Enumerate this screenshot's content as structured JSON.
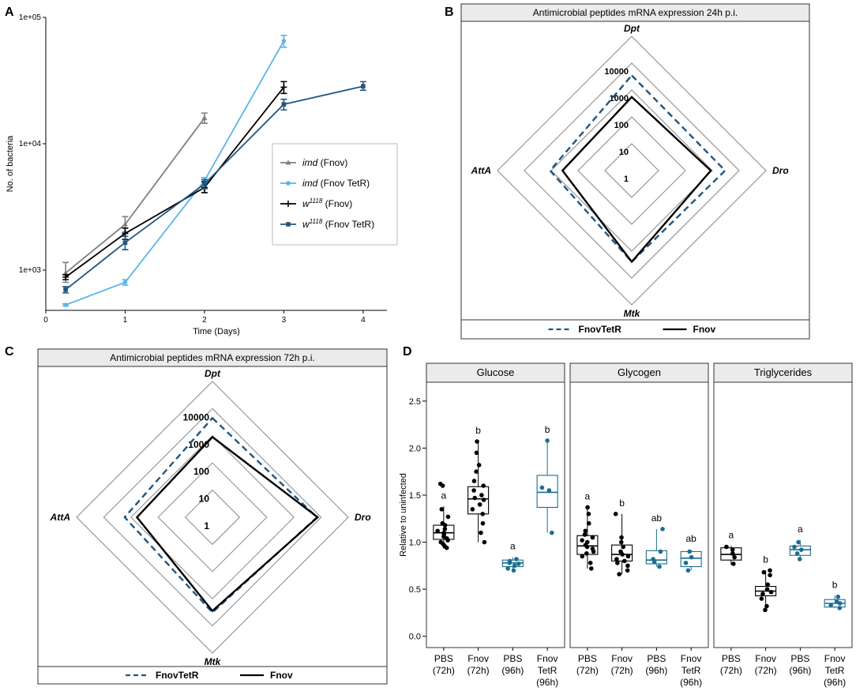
{
  "panel_labels": {
    "a": "A",
    "b": "B",
    "c": "C",
    "d": "D"
  },
  "chart_data": [
    {
      "id": "A",
      "type": "line",
      "scale_y": "log10",
      "xlabel": "Time (Days)",
      "ylabel": "No. of bacteria",
      "xlim": [
        0,
        4.3
      ],
      "ylim": [
        480,
        100000
      ],
      "x_ticks": [
        0,
        1,
        2,
        3,
        4
      ],
      "x_tick_labels": [
        "0",
        "1",
        "2",
        "3",
        "4"
      ],
      "y_ticks": [
        1000,
        10000,
        100000
      ],
      "y_tick_labels": [
        "1e+03",
        "1e+04",
        "1e+05"
      ],
      "legend_position": "center-right",
      "series": [
        {
          "name": "imd",
          "name_suffix": " (Fnov)",
          "italic": true,
          "sup": "",
          "color": "#7f7f7f",
          "marker": "triangle",
          "x": [
            0.25,
            1,
            2
          ],
          "y": [
            950,
            2300,
            16000
          ],
          "err": [
            [
              800,
              1150
            ],
            [
              2000,
              2650
            ],
            [
              14500,
              17500
            ]
          ]
        },
        {
          "name": "imd",
          "name_suffix": " (Fnov TetR)",
          "italic": true,
          "sup": "",
          "color": "#5ab4ea",
          "marker": "circle",
          "x": [
            0.25,
            1,
            2,
            3
          ],
          "y": [
            530,
            800,
            5100,
            65000
          ],
          "err": [
            [
              520,
              540
            ],
            [
              760,
              840
            ],
            [
              4800,
              5400
            ],
            [
              58000,
              72000
            ]
          ]
        },
        {
          "name": "w",
          "name_suffix": " (Fnov)",
          "italic": true,
          "sup": "1118",
          "color": "#000000",
          "marker": "plus",
          "x": [
            0.25,
            1,
            2,
            3
          ],
          "y": [
            880,
            1950,
            4500,
            28000
          ],
          "err": [
            [
              840,
              920
            ],
            [
              1750,
              2150
            ],
            [
              4100,
              5000
            ],
            [
              25000,
              31000
            ]
          ]
        },
        {
          "name": "w",
          "name_suffix": " (Fnov TetR)",
          "italic": true,
          "sup": "1118",
          "color": "#22557f",
          "marker": "square",
          "x": [
            0.25,
            1,
            2,
            3,
            4
          ],
          "y": [
            700,
            1650,
            4800,
            20500,
            28500
          ],
          "err": [
            [
              660,
              740
            ],
            [
              1450,
              1850
            ],
            [
              4400,
              5200
            ],
            [
              18500,
              22500
            ],
            [
              26500,
              31000
            ]
          ]
        }
      ]
    },
    {
      "id": "B",
      "type": "radar",
      "title": "Antimicrobial peptides mRNA expression 24h p.i.",
      "axes": [
        "Dpt",
        "Dro",
        "Mtk",
        "AttA"
      ],
      "scale": "log10",
      "rmax": 100000,
      "rings": [
        1,
        10,
        100,
        1000,
        10000
      ],
      "ring_labels": [
        "1",
        "10",
        "100",
        "1000",
        "10000"
      ],
      "series": [
        {
          "name": "FnovTetR",
          "style": "dashed",
          "color": "#22557f",
          "values": [
            3500,
            3000,
            2500,
            1100
          ]
        },
        {
          "name": "Fnov",
          "style": "solid",
          "color": "#000000",
          "values": [
            550,
            880,
            2500,
            380
          ]
        }
      ]
    },
    {
      "id": "C",
      "type": "radar",
      "title": "Antimicrobial peptides mRNA expression 72h p.i.",
      "axes": [
        "Dpt",
        "Dro",
        "Mtk",
        "AttA"
      ],
      "scale": "log10",
      "rmax": 100000,
      "rings": [
        1,
        10,
        100,
        1000,
        10000
      ],
      "ring_labels": [
        "1",
        "10",
        "100",
        "1000",
        "10000"
      ],
      "series": [
        {
          "name": "FnovTetR",
          "style": "dashed",
          "color": "#22557f",
          "values": [
            4500,
            7000,
            3200,
            1700
          ]
        },
        {
          "name": "Fnov",
          "style": "solid",
          "color": "#000000",
          "values": [
            900,
            7500,
            2800,
            600
          ]
        }
      ]
    },
    {
      "id": "D",
      "type": "box",
      "ylabel": "Relative  to uninfected",
      "ylim": [
        -0.12,
        2.7
      ],
      "y_ticks": [
        0,
        0.5,
        1,
        1.5,
        2,
        2.5
      ],
      "y_tick_labels": [
        "0.0",
        "0.5",
        "1.0",
        "1.5",
        "2.0",
        "2.5"
      ],
      "categories": [
        [
          "PBS",
          "(72h)"
        ],
        [
          "Fnov",
          "(72h)"
        ],
        [
          "PBS",
          "(96h)"
        ],
        [
          "Fnov",
          "TetR",
          "(96h)"
        ]
      ],
      "category_colors": [
        "#000000",
        "#000000",
        "#1b6e8f",
        "#1b6e8f"
      ],
      "facets": [
        {
          "title": "Glucose",
          "groups": [
            {
              "q1": 1.03,
              "median": 1.1,
              "q3": 1.18,
              "whisker_low": 0.93,
              "whisker_high": 1.38,
              "letter": "a",
              "points": [
                0.94,
                0.96,
                0.98,
                1.0,
                1.02,
                1.04,
                1.06,
                1.08,
                1.1,
                1.12,
                1.14,
                1.18,
                1.2,
                1.27,
                1.35,
                1.6,
                1.62
              ]
            },
            {
              "q1": 1.3,
              "median": 1.46,
              "q3": 1.59,
              "whisker_low": 1.0,
              "whisker_high": 2.07,
              "letter": "b",
              "points": [
                1.0,
                1.1,
                1.2,
                1.3,
                1.35,
                1.4,
                1.45,
                1.47,
                1.5,
                1.55,
                1.6,
                1.65,
                1.75,
                1.82,
                1.95,
                2.07
              ]
            },
            {
              "q1": 0.74,
              "median": 0.78,
              "q3": 0.81,
              "whisker_low": 0.69,
              "whisker_high": 0.84,
              "letter": "a",
              "points": [
                0.7,
                0.72,
                0.75,
                0.77,
                0.78,
                0.8,
                0.82
              ]
            },
            {
              "q1": 1.37,
              "median": 1.53,
              "q3": 1.71,
              "whisker_low": 1.1,
              "whisker_high": 2.08,
              "letter": "b",
              "points": [
                1.1,
                1.55,
                1.58,
                2.08
              ]
            }
          ]
        },
        {
          "title": "Glycogen",
          "groups": [
            {
              "q1": 0.87,
              "median": 0.96,
              "q3": 1.07,
              "whisker_low": 0.72,
              "whisker_high": 1.37,
              "letter": "a",
              "points": [
                0.72,
                0.78,
                0.85,
                0.88,
                0.9,
                0.93,
                0.95,
                0.97,
                1.0,
                1.02,
                1.05,
                1.08,
                1.12,
                1.2,
                1.3,
                1.37
              ]
            },
            {
              "q1": 0.8,
              "median": 0.87,
              "q3": 0.97,
              "whisker_low": 0.66,
              "whisker_high": 1.3,
              "letter": "b",
              "points": [
                0.66,
                0.7,
                0.75,
                0.78,
                0.8,
                0.82,
                0.85,
                0.87,
                0.9,
                0.95,
                1.0,
                1.05,
                1.3
              ]
            },
            {
              "q1": 0.77,
              "median": 0.81,
              "q3": 0.91,
              "whisker_low": 0.74,
              "whisker_high": 1.14,
              "letter": "ab",
              "points": [
                0.74,
                0.79,
                0.82,
                0.9,
                1.14
              ]
            },
            {
              "q1": 0.74,
              "median": 0.83,
              "q3": 0.9,
              "whisker_low": 0.7,
              "whisker_high": 0.92,
              "letter": "ab",
              "points": [
                0.7,
                0.78,
                0.84,
                0.9
              ]
            }
          ]
        },
        {
          "title": "Triglycerides",
          "groups": [
            {
              "q1": 0.81,
              "median": 0.87,
              "q3": 0.94,
              "whisker_low": 0.76,
              "whisker_high": 0.96,
              "letter": "a",
              "points": [
                0.77,
                0.84,
                0.88,
                0.92,
                0.95
              ]
            },
            {
              "q1": 0.43,
              "median": 0.48,
              "q3": 0.53,
              "whisker_low": 0.28,
              "whisker_high": 0.7,
              "letter": "b",
              "points": [
                0.28,
                0.32,
                0.4,
                0.45,
                0.47,
                0.5,
                0.55,
                0.65,
                0.68,
                0.7
              ]
            },
            {
              "q1": 0.86,
              "median": 0.92,
              "q3": 0.96,
              "whisker_low": 0.81,
              "whisker_high": 1.02,
              "letter": "a",
              "points": [
                0.82,
                0.88,
                0.92,
                0.95,
                1.0
              ]
            },
            {
              "q1": 0.31,
              "median": 0.35,
              "q3": 0.39,
              "whisker_low": 0.3,
              "whisker_high": 0.43,
              "letter": "b",
              "points": [
                0.3,
                0.33,
                0.35,
                0.37,
                0.42
              ]
            }
          ]
        }
      ]
    }
  ]
}
